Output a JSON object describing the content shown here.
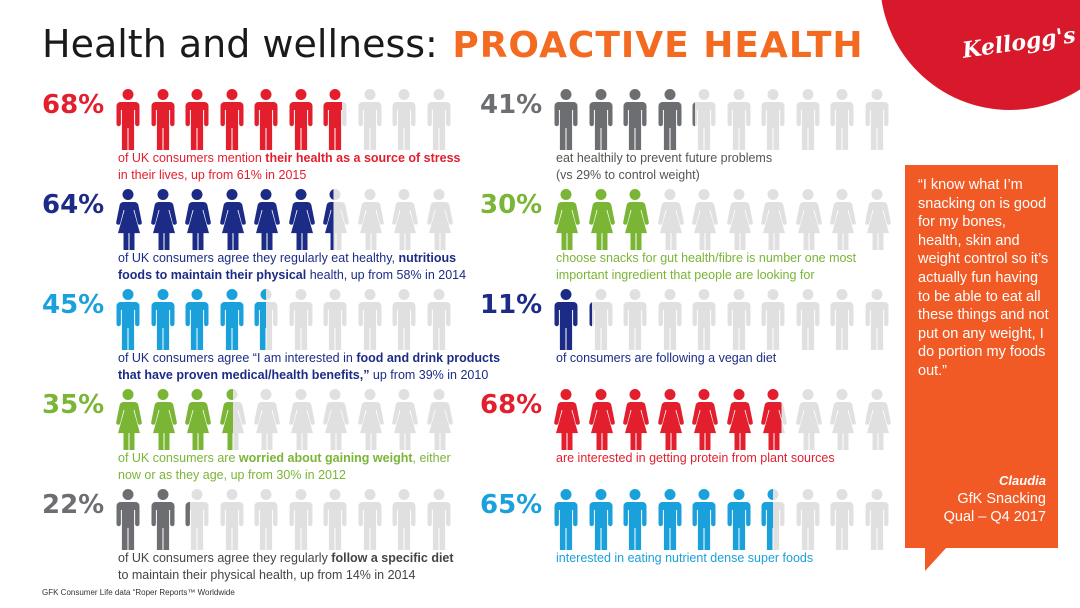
{
  "title": {
    "part1": "Health and wellness:",
    "part2": "PROACTIVE HEALTH"
  },
  "brand": {
    "logo": "Kellogg's",
    "color": "#d7192b"
  },
  "colors": {
    "gray_inactive": "#e0e0e0"
  },
  "stats": [
    {
      "pct": "68%",
      "value": 68,
      "figure": "man",
      "color": "#e31e2d",
      "desc_color": "#e31e2d",
      "lines": [
        [
          {
            "t": "of UK consumers mention "
          },
          {
            "t": "their health as a source of stress",
            "b": true
          }
        ],
        [
          {
            "t": "in their lives, up from 61% in 2015"
          }
        ]
      ]
    },
    {
      "pct": "64%",
      "value": 64,
      "figure": "woman",
      "color": "#1c2c86",
      "desc_color": "#1c2c86",
      "lines": [
        [
          {
            "t": "of UK consumers agree they regularly eat healthy, "
          },
          {
            "t": "nutritious",
            "b": true
          }
        ],
        [
          {
            "t": "foods to maintain their physical",
            "b": true
          },
          {
            "t": " health, up from 58% in 2014"
          }
        ]
      ]
    },
    {
      "pct": "45%",
      "value": 45,
      "figure": "man",
      "color": "#1aa1dc",
      "desc_color": "#1c2c86",
      "lines": [
        [
          {
            "t": "of UK consumers agree “I am interested in "
          },
          {
            "t": "food and drink products",
            "b": true
          }
        ],
        [
          {
            "t": "that have proven medical/health benefits,”",
            "b": true
          },
          {
            "t": " up from 39% in 2010"
          }
        ]
      ]
    },
    {
      "pct": "35%",
      "value": 35,
      "figure": "woman",
      "color": "#7ab536",
      "desc_color": "#7ab536",
      "lines": [
        [
          {
            "t": "of UK consumers are "
          },
          {
            "t": "worried about gaining weight",
            "b": true
          },
          {
            "t": ", either"
          }
        ],
        [
          {
            "t": "now or as they age, up from 30% in 2012"
          }
        ]
      ]
    },
    {
      "pct": "22%",
      "value": 22,
      "figure": "man",
      "color": "#6d6e71",
      "desc_color": "#444444",
      "lines": [
        [
          {
            "t": "of UK consumers agree they regularly "
          },
          {
            "t": "follow a specific diet",
            "b": true
          }
        ],
        [
          {
            "t": "to maintain their physical health, up from 14% in 2014"
          }
        ]
      ]
    },
    {
      "pct": "41%",
      "value": 41,
      "figure": "man",
      "color": "#6d6e71",
      "desc_color": "#555555",
      "lines": [
        [
          {
            "t": "eat healthily to prevent future problems"
          }
        ],
        [
          {
            "t": "(vs 29% to control weight)"
          }
        ]
      ]
    },
    {
      "pct": "30%",
      "value": 30,
      "figure": "woman",
      "color": "#7ab536",
      "desc_color": "#7ab536",
      "lines": [
        [
          {
            "t": "choose snacks for gut health/fibre is number one most"
          }
        ],
        [
          {
            "t": "important ingredient that people are looking for"
          }
        ]
      ]
    },
    {
      "pct": "11%",
      "value": 11,
      "figure": "man",
      "color": "#1c2c86",
      "desc_color": "#1c2c86",
      "lines": [
        [
          {
            "t": "of consumers are following a vegan diet"
          }
        ]
      ]
    },
    {
      "pct": "68%",
      "value": 68,
      "figure": "woman",
      "color": "#e31e2d",
      "desc_color": "#e31e2d",
      "lines": [
        [
          {
            "t": "are interested in getting protein from plant sources"
          }
        ]
      ]
    },
    {
      "pct": "65%",
      "value": 65,
      "figure": "man",
      "color": "#1aa1dc",
      "desc_color": "#1aa1dc",
      "lines": [
        [
          {
            "t": "interested in eating nutrient dense super foods"
          }
        ]
      ]
    }
  ],
  "quote": {
    "text": "“I know what I’m snacking on is good for my bones, health, skin and weight control so it’s actually fun having to be able to eat all these things and not put on any weight, I do portion my foods out.”",
    "name": "Claudia",
    "source_line1": "GfK Snacking",
    "source_line2": "Qual – Q4 2017",
    "color": "#f15a24"
  },
  "source": "GFK Consumer Life data “Roper Reports™ Worldwide"
}
